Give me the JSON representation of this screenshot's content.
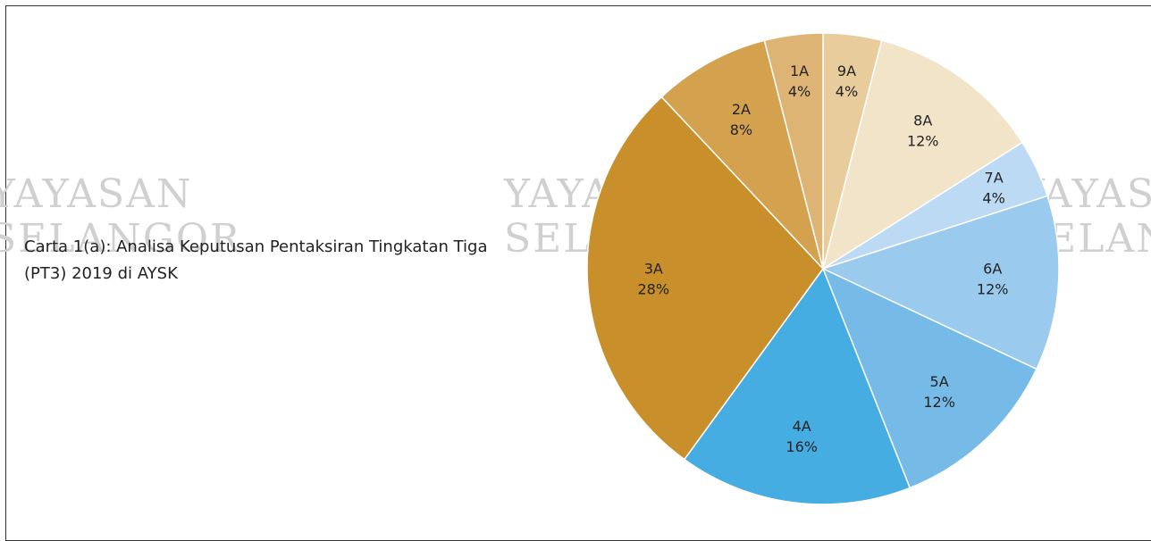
{
  "chart_data": {
    "type": "pie",
    "title": "Carta 1(a): Analisa Keputusan Pentaksiran Tingkatan Tiga (PT3) 2019 di AYSK",
    "watermark": [
      "YAYASAN",
      "SELANGOR"
    ],
    "categories": [
      "9A",
      "8A",
      "7A",
      "6A",
      "5A",
      "4A",
      "3A",
      "2A",
      "1A"
    ],
    "values": [
      4,
      12,
      4,
      12,
      12,
      16,
      28,
      8,
      4
    ],
    "value_labels": [
      "4%",
      "12%",
      "4%",
      "12%",
      "12%",
      "16%",
      "28%",
      "8%",
      "4%"
    ],
    "colors": [
      "#e9cc9c",
      "#f2e4c9",
      "#bcdaf3",
      "#9bcaef",
      "#76bae8",
      "#45ade2",
      "#c98f2b",
      "#d4a24f",
      "#ddb474"
    ]
  }
}
